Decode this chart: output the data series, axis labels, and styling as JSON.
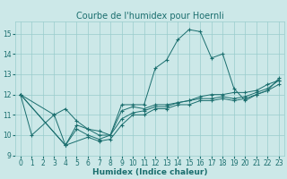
{
  "title": "Courbe de l'humidex pour Hoernli",
  "xlabel": "Humidex (Indice chaleur)",
  "bg_color": "#cce8e8",
  "grid_color": "#99cccc",
  "line_color": "#1a6e6e",
  "xlim": [
    -0.5,
    23.5
  ],
  "ylim": [
    9.0,
    15.6
  ],
  "yticks": [
    9,
    10,
    11,
    12,
    13,
    14,
    15
  ],
  "xticks": [
    0,
    1,
    2,
    3,
    4,
    5,
    6,
    7,
    8,
    9,
    10,
    11,
    12,
    13,
    14,
    15,
    16,
    17,
    18,
    19,
    20,
    21,
    22,
    23
  ],
  "series": [
    {
      "x": [
        0,
        1,
        3,
        4,
        5,
        6,
        7,
        8,
        9,
        10,
        11,
        12,
        13,
        14,
        15,
        16,
        17,
        18,
        19,
        20,
        21,
        22,
        23
      ],
      "y": [
        12.0,
        10.0,
        11.0,
        9.5,
        10.5,
        10.3,
        10.0,
        10.0,
        11.5,
        11.5,
        11.5,
        13.3,
        13.7,
        14.7,
        15.2,
        15.1,
        13.8,
        14.0,
        12.3,
        11.7,
        12.0,
        12.2,
        12.8
      ]
    },
    {
      "x": [
        0,
        3,
        4,
        5,
        6,
        7,
        8,
        9,
        10,
        11,
        12,
        13,
        14,
        15,
        16,
        17,
        18,
        19,
        20,
        21,
        22,
        23
      ],
      "y": [
        12.0,
        11.0,
        11.3,
        10.7,
        10.3,
        10.2,
        10.0,
        11.2,
        11.4,
        11.3,
        11.5,
        11.5,
        11.6,
        11.7,
        11.9,
        12.0,
        12.0,
        12.1,
        12.1,
        12.2,
        12.5,
        12.7
      ]
    },
    {
      "x": [
        0,
        4,
        5,
        6,
        7,
        8,
        9,
        10,
        11,
        12,
        13,
        14,
        15,
        16,
        17,
        18,
        19,
        20,
        21,
        22,
        23
      ],
      "y": [
        12.0,
        9.5,
        10.3,
        10.0,
        9.8,
        10.0,
        10.8,
        11.1,
        11.2,
        11.4,
        11.4,
        11.6,
        11.7,
        11.8,
        11.8,
        11.9,
        11.8,
        11.9,
        12.1,
        12.3,
        12.7
      ]
    },
    {
      "x": [
        0,
        4,
        6,
        7,
        8,
        9,
        10,
        11,
        12,
        13,
        14,
        15,
        16,
        17,
        18,
        19,
        20,
        21,
        22,
        23
      ],
      "y": [
        12.0,
        9.5,
        9.9,
        9.7,
        9.8,
        10.5,
        11.0,
        11.0,
        11.3,
        11.3,
        11.5,
        11.5,
        11.7,
        11.7,
        11.8,
        11.7,
        11.8,
        12.0,
        12.2,
        12.5
      ]
    }
  ],
  "title_fontsize": 7,
  "axis_fontsize": 6.5,
  "tick_fontsize": 5.5
}
